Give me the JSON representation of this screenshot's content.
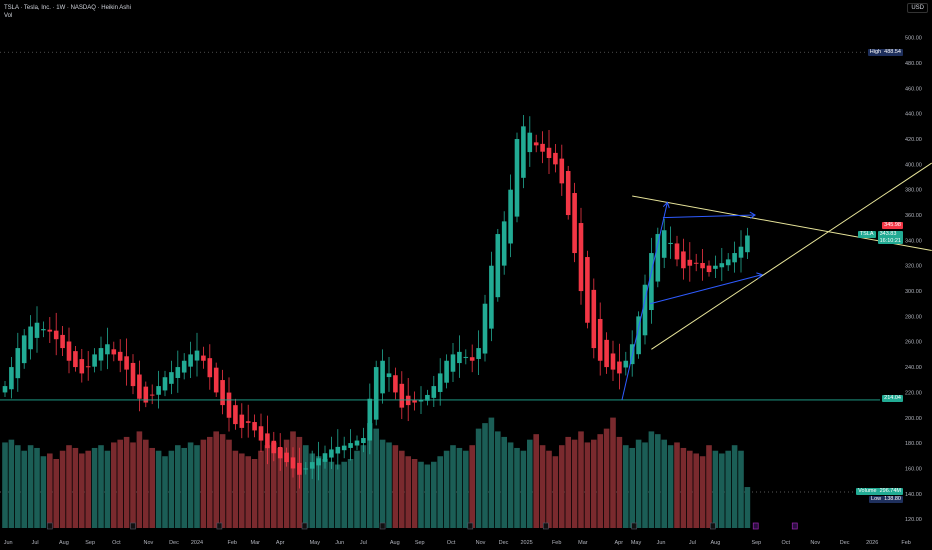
{
  "header": {
    "title": "TSLA · Tesla, Inc. · 1W · NASDAQ · Heikin Ashi",
    "indicator": "Vol"
  },
  "currency_button": "USD",
  "colors": {
    "up": "#22ab94",
    "down": "#f23645",
    "up_vol": "#1b5e56",
    "down_vol": "#7a2a2e",
    "support": "#22ab94",
    "triangle": "#e8e59a",
    "arrows": "#2e5bff"
  },
  "labels": {
    "high_label": "High",
    "high_value": "488.54",
    "prev_close": "345.98",
    "ticker": "TSLA",
    "last_price": "343.83",
    "countdown": "16:10:21",
    "support_value": "214.04",
    "volume_label": "Volume",
    "volume_value": "296.74M",
    "low_label": "Low",
    "low_value": "138.80"
  },
  "chart_data": {
    "type": "candlestick",
    "style": "Heikin Ashi",
    "interval": "1W",
    "ylim": [
      110,
      505
    ],
    "y_ticks": [
      500,
      480,
      460,
      440,
      420,
      400,
      380,
      360,
      340,
      320,
      300,
      280,
      260,
      240,
      220,
      200,
      180,
      160,
      140,
      120
    ],
    "x_ticks": [
      "Jun",
      "Jul",
      "Aug",
      "Sep",
      "Oct",
      "Nov",
      "Dec",
      "2024",
      "Feb",
      "Mar",
      "Apr",
      "May",
      "Jun",
      "Jul",
      "Aug",
      "Sep",
      "Oct",
      "Nov",
      "Dec",
      "2025",
      "Feb",
      "Mar",
      "Apr",
      "May",
      "Jun",
      "Jul",
      "Aug",
      "Sep",
      "Oct",
      "Nov",
      "Dec",
      "2026",
      "Feb"
    ],
    "x_tick_weeks": [
      0.5,
      4.7,
      9.2,
      13.3,
      17.4,
      22.4,
      26.4,
      30,
      35.5,
      39.1,
      43,
      48.4,
      52.3,
      56,
      60.9,
      64.8,
      69.7,
      74.3,
      77.9,
      81.5,
      86.2,
      90.3,
      95.9,
      98.6,
      102.5,
      107.4,
      111,
      117.4,
      122,
      126.6,
      131.2,
      135.5,
      140.8
    ],
    "ha_close": [
      225,
      240,
      255,
      265,
      272,
      275,
      270,
      268,
      262,
      255,
      245,
      240,
      235,
      240,
      250,
      255,
      258,
      250,
      245,
      238,
      225,
      215,
      212,
      218,
      225,
      232,
      236,
      240,
      245,
      250,
      253,
      245,
      232,
      220,
      210,
      200,
      195,
      192,
      196,
      190,
      182,
      176,
      172,
      168,
      165,
      160,
      155,
      160,
      165,
      168,
      172,
      175,
      177,
      178,
      180,
      182,
      184,
      215,
      240,
      245,
      235,
      220,
      208,
      210,
      212,
      214,
      218,
      225,
      235,
      245,
      250,
      252,
      248,
      245,
      255,
      290,
      320,
      345,
      355,
      380,
      420,
      430,
      425,
      415,
      410,
      405,
      400,
      385,
      360,
      330,
      300,
      275,
      255,
      245,
      240,
      238,
      235,
      245,
      258,
      280,
      305,
      330,
      345,
      348,
      338,
      325,
      318,
      320,
      322,
      318,
      315,
      320,
      322,
      325,
      330,
      335,
      343.83
    ],
    "volume_m": [
      620,
      640,
      600,
      560,
      600,
      580,
      520,
      540,
      500,
      560,
      600,
      580,
      540,
      560,
      580,
      600,
      560,
      620,
      640,
      660,
      620,
      700,
      640,
      580,
      560,
      520,
      560,
      600,
      580,
      620,
      600,
      640,
      660,
      700,
      680,
      640,
      560,
      540,
      520,
      500,
      560,
      600,
      620,
      580,
      640,
      700,
      660,
      600,
      540,
      520,
      500,
      480,
      460,
      480,
      500,
      560,
      600,
      760,
      720,
      640,
      620,
      600,
      560,
      520,
      500,
      480,
      460,
      480,
      520,
      560,
      600,
      580,
      560,
      600,
      720,
      760,
      800,
      700,
      660,
      620,
      580,
      560,
      640,
      680,
      600,
      560,
      520,
      600,
      660,
      640,
      700,
      620,
      640,
      680,
      720,
      800,
      660,
      600,
      580,
      640,
      620,
      700,
      680,
      640,
      600,
      620,
      580,
      560,
      540,
      520,
      600,
      560,
      540,
      560,
      600,
      560,
      296.74
    ],
    "support_level": 214.04,
    "high": 488.54,
    "low": 138.8,
    "annotations": [
      {
        "type": "trendline",
        "name": "triangle-upper",
        "from": {
          "week": 98,
          "price": 375
        },
        "to": {
          "week": 144.8,
          "price": 332
        }
      },
      {
        "type": "trendline",
        "name": "triangle-lower",
        "from": {
          "week": 101,
          "price": 254
        },
        "to": {
          "week": 144.8,
          "price": 401
        }
      },
      {
        "type": "arrow",
        "name": "impulse-arrow",
        "from": {
          "week": 96.4,
          "price": 214
        },
        "to": {
          "week": 103.5,
          "price": 370
        }
      },
      {
        "type": "arrow",
        "name": "upper-arrow",
        "from": {
          "week": 102.8,
          "price": 358
        },
        "to": {
          "week": 117.2,
          "price": 360
        }
      },
      {
        "type": "arrow",
        "name": "lower-arrow",
        "from": {
          "week": 100.8,
          "price": 290
        },
        "to": {
          "week": 118.3,
          "price": 313
        }
      }
    ]
  }
}
